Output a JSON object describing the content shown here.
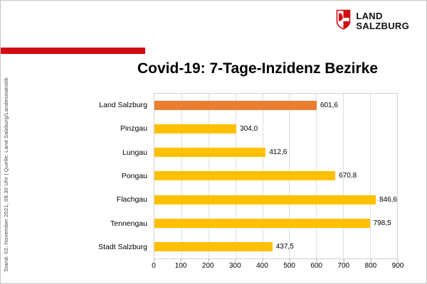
{
  "header": {
    "logo": {
      "line1": "LAND",
      "line2": "SALZBURG"
    },
    "accent_color": "#d20a11"
  },
  "source_note": "Stand: 02. November 2021, 08.30 Uhr  |  Quelle: Land Salzburg/Landesstatistik",
  "chart_data": {
    "type": "bar",
    "orientation": "horizontal",
    "title": "Covid-19: 7-Tage-Inzidenz Bezirke",
    "categories": [
      "Land Salzburg",
      "Pinzgau",
      "Lungau",
      "Pongau",
      "Flachgau",
      "Tennengau",
      "Stadt Salzburg"
    ],
    "values": [
      601.6,
      304.0,
      412.6,
      670.8,
      846.6,
      798.5,
      437.5
    ],
    "value_labels": [
      "601,6",
      "304,0",
      "412,6",
      "670,8",
      "846,6",
      "798,5",
      "437,5"
    ],
    "bar_colors": [
      "#ed7d31",
      "#ffc000",
      "#ffc000",
      "#ffc000",
      "#ffc000",
      "#ffc000",
      "#ffc000"
    ],
    "highlight_color": "#ed7d31",
    "default_color": "#ffc000",
    "xlabel": "",
    "ylabel": "",
    "xlim": [
      0,
      900
    ],
    "x_ticks": [
      0,
      100,
      200,
      300,
      400,
      500,
      600,
      700,
      800,
      900
    ],
    "grid": true,
    "legend": false
  }
}
